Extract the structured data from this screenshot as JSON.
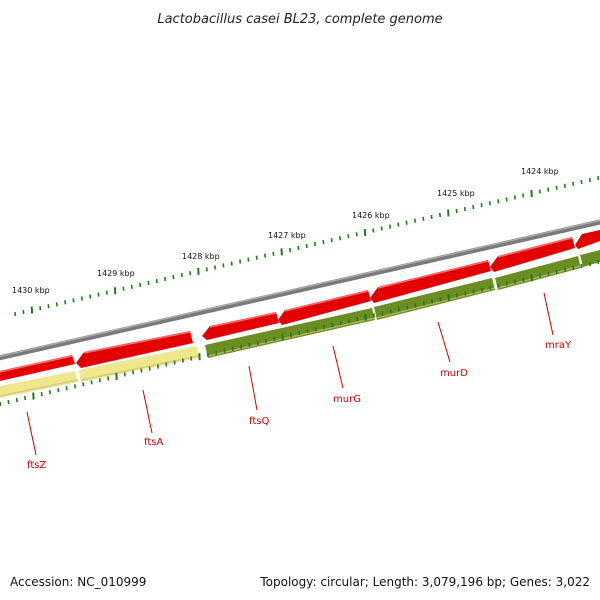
{
  "title": "Lactobacillus casei BL23, complete genome",
  "footer": {
    "accession": "Accession: NC_010999",
    "summary": "Topology: circular; Length: 3,079,196 bp; Genes: 3,022"
  },
  "kbp_labels": [
    "1430 kbp",
    "1429 kbp",
    "1428 kbp",
    "1427 kbp",
    "1426 kbp",
    "1425 kbp",
    "1424 kbp"
  ],
  "genes": [
    "ftsZ",
    "ftsA",
    "ftsQ",
    "murG",
    "murD",
    "mraY"
  ],
  "colors": {
    "backbone": "#808080",
    "forward_gene": "#e60000",
    "reverse_gene_highlight": "#6b8e23",
    "reverse_gene_other": "#f0e68c",
    "tick": "#1e7b1e",
    "gene_label": "#cc0000"
  }
}
